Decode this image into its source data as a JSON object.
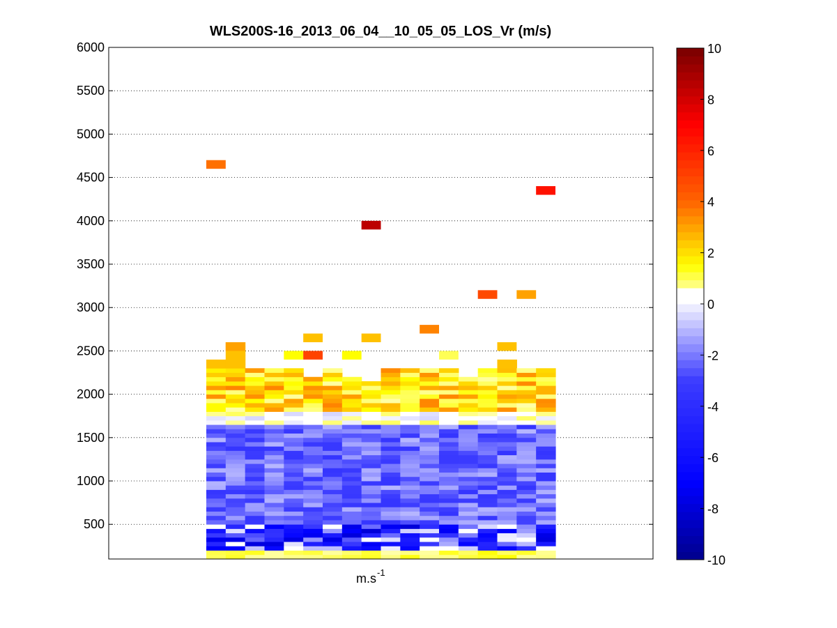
{
  "chart_data": {
    "type": "heatmap",
    "title": "WLS200S-16_2013_06_04__10_05_05_LOS_Vr (m/s)",
    "xlabel": "m.s",
    "xlabel_superscript": "-1",
    "ylabel": "",
    "ylim": [
      100,
      6000
    ],
    "yticks": [
      500,
      1000,
      1500,
      2000,
      2500,
      3000,
      3500,
      4000,
      4500,
      5000,
      5500,
      6000
    ],
    "grid": "horizontal dotted",
    "colorbar": {
      "clim": [
        -10,
        10
      ],
      "ticks": [
        -10,
        -8,
        -6,
        -4,
        -2,
        0,
        2,
        4,
        6,
        8,
        10
      ],
      "colormap": "blue-white-yellow-red"
    },
    "columns": 18,
    "profile_top_altitudes": [
      2400,
      2600,
      2300,
      2300,
      2300,
      2200,
      2300,
      2200,
      2150,
      2300,
      2300,
      2300,
      2300,
      2200,
      2300,
      2400,
      2300,
      2300
    ],
    "isolated_cells": [
      {
        "column": 0,
        "altitude": 4650,
        "value": 3.8
      },
      {
        "column": 8,
        "altitude": 3950,
        "value": 8.5
      },
      {
        "column": 17,
        "altitude": 4350,
        "value": 6.5
      },
      {
        "column": 14,
        "altitude": 3150,
        "value": 4.8
      },
      {
        "column": 16,
        "altitude": 3150,
        "value": 3.0
      },
      {
        "column": 11,
        "altitude": 2750,
        "value": 3.5
      },
      {
        "column": 5,
        "altitude": 2650,
        "value": 2.5
      },
      {
        "column": 8,
        "altitude": 2650,
        "value": 2.5
      },
      {
        "column": 1,
        "altitude": 2550,
        "value": 3.0
      },
      {
        "column": 15,
        "altitude": 2550,
        "value": 2.5
      },
      {
        "column": 4,
        "altitude": 2450,
        "value": 1.5
      },
      {
        "column": 5,
        "altitude": 2450,
        "value": 5.0
      },
      {
        "column": 7,
        "altitude": 2450,
        "value": 1.5
      },
      {
        "column": 12,
        "altitude": 2450,
        "value": 1.0
      }
    ],
    "layers": [
      {
        "from": 1800,
        "to": 2300,
        "value_range": [
          0.5,
          3.5
        ],
        "description_value": "positive"
      },
      {
        "from": 1650,
        "to": 1800,
        "value_range": [
          -0.5,
          1.0
        ]
      },
      {
        "from": 500,
        "to": 1650,
        "value_range": [
          -3.5,
          -1.0
        ]
      },
      {
        "from": 200,
        "to": 500,
        "value_range": [
          -8.0,
          0.0
        ]
      },
      {
        "from": 100,
        "to": 200,
        "value_range": [
          0.5,
          1.5
        ]
      }
    ]
  }
}
